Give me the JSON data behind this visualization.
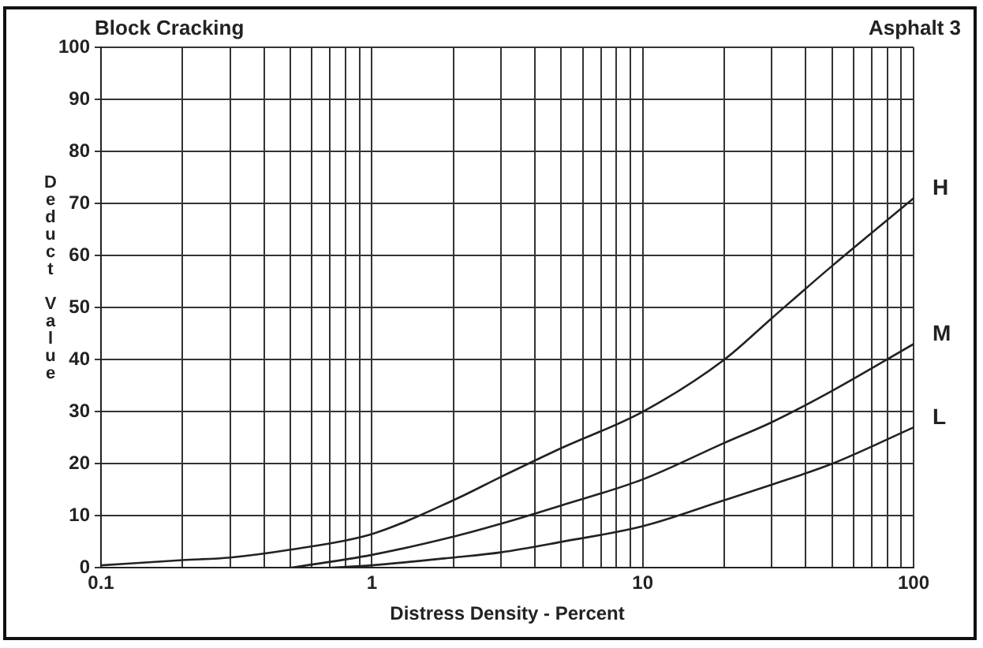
{
  "chart_data": {
    "type": "line",
    "title": "Block Cracking",
    "subtitle": "Asphalt 3",
    "xlabel": "Distress Density - Percent",
    "ylabel": "Deduct Value",
    "log": "x",
    "grid": true,
    "legend": false,
    "marker": "none",
    "line_style": "solid",
    "xlim": [
      0.1,
      100
    ],
    "xticks": [
      0.1,
      {
        "value": 0.2,
        "label": null
      },
      {
        "value": 0.3,
        "label": null
      },
      {
        "value": 0.4,
        "label": null
      },
      {
        "value": 0.5,
        "label": null
      },
      {
        "value": 0.6,
        "label": null
      },
      {
        "value": 0.7,
        "label": null
      },
      {
        "value": 0.8,
        "label": null
      },
      {
        "value": 0.9,
        "label": null
      },
      1,
      {
        "value": 2,
        "label": null
      },
      {
        "value": 3,
        "label": null
      },
      {
        "value": 4,
        "label": null
      },
      {
        "value": 5,
        "label": null
      },
      {
        "value": 6,
        "label": null
      },
      {
        "value": 7,
        "label": null
      },
      {
        "value": 8,
        "label": null
      },
      {
        "value": 9,
        "label": null
      },
      10,
      {
        "value": 20,
        "label": null
      },
      {
        "value": 30,
        "label": null
      },
      {
        "value": 40,
        "label": null
      },
      {
        "value": 50,
        "label": null
      },
      {
        "value": 60,
        "label": null
      },
      {
        "value": 70,
        "label": null
      },
      {
        "value": 80,
        "label": null
      },
      {
        "value": 90,
        "label": null
      },
      100
    ],
    "ylim": [
      0,
      100
    ],
    "yticks": [
      0,
      10,
      20,
      30,
      40,
      50,
      60,
      70,
      80,
      90,
      100
    ],
    "series": [
      {
        "name": "H",
        "color": "#222222",
        "x": [
          0.1,
          0.2,
          0.3,
          0.5,
          1,
          2,
          3,
          5,
          10,
          20,
          30,
          50,
          100
        ],
        "values": [
          0.5,
          1.5,
          2,
          3.5,
          6.5,
          13,
          17.5,
          23,
          30,
          40,
          48,
          58,
          71
        ]
      },
      {
        "name": "M",
        "color": "#222222",
        "x": [
          0.5,
          1,
          2,
          3,
          5,
          10,
          20,
          30,
          50,
          100
        ],
        "values": [
          0,
          2.5,
          6,
          8.5,
          12,
          17,
          24,
          28,
          34,
          43
        ]
      },
      {
        "name": "L",
        "color": "#222222",
        "x": [
          0.7,
          1,
          2,
          3,
          5,
          10,
          20,
          30,
          50,
          100
        ],
        "values": [
          0,
          0.5,
          2,
          3,
          5,
          8,
          13,
          16,
          20,
          27
        ]
      }
    ]
  }
}
